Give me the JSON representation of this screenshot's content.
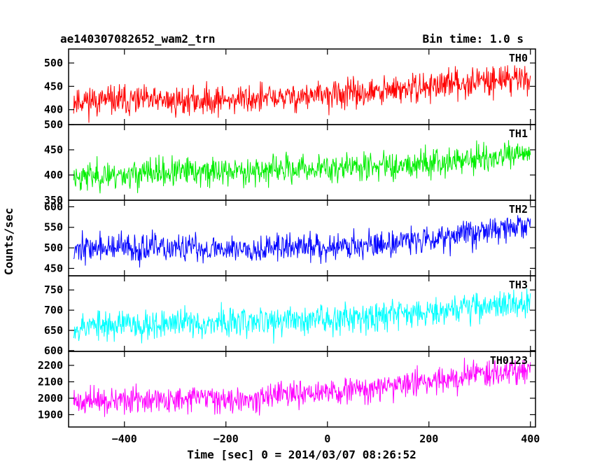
{
  "chart_data": {
    "type": "line",
    "title": "ae140307082652_wam2_trn",
    "subtitle": "Bin time: 1.0 s",
    "xlabel": "Time [sec] 0 = 2014/03/07 08:26:52",
    "ylabel": "Counts/sec",
    "xlim": [
      -510,
      410
    ],
    "x_ticks": [
      -400,
      -200,
      0,
      200,
      400
    ],
    "x_tick_labels": [
      "−400",
      "−200",
      "0",
      "200",
      "400"
    ],
    "grid": false,
    "legend": "in-panel top-right",
    "panels": [
      {
        "name": "TH0",
        "color": "#ff0000",
        "ylim": [
          368,
          530
        ],
        "y_ticks": [
          400,
          450,
          500
        ],
        "x_start": -500,
        "x_end": 400,
        "trend": [
          [
            -500,
            420
          ],
          [
            -300,
            418
          ],
          [
            -100,
            425
          ],
          [
            100,
            437
          ],
          [
            300,
            462
          ],
          [
            400,
            470
          ]
        ],
        "noise_sd": 22,
        "seed": 11
      },
      {
        "name": "TH1",
        "color": "#00ee00",
        "ylim": [
          350,
          500
        ],
        "y_ticks": [
          350,
          400,
          450,
          500
        ],
        "x_start": -500,
        "x_end": 400,
        "trend": [
          [
            -500,
            397
          ],
          [
            -300,
            405
          ],
          [
            -100,
            410
          ],
          [
            100,
            418
          ],
          [
            300,
            432
          ],
          [
            400,
            440
          ]
        ],
        "noise_sd": 20,
        "seed": 23
      },
      {
        "name": "TH2",
        "color": "#0000ff",
        "ylim": [
          432,
          616
        ],
        "y_ticks": [
          450,
          500,
          550,
          600
        ],
        "x_start": -500,
        "x_end": 400,
        "trend": [
          [
            -500,
            500
          ],
          [
            -300,
            498
          ],
          [
            -100,
            500
          ],
          [
            100,
            508
          ],
          [
            300,
            540
          ],
          [
            400,
            555
          ]
        ],
        "noise_sd": 24,
        "seed": 37
      },
      {
        "name": "TH3",
        "color": "#00ffff",
        "ylim": [
          598,
          785
        ],
        "y_ticks": [
          600,
          650,
          700,
          750
        ],
        "x_start": -500,
        "x_end": 400,
        "trend": [
          [
            -500,
            660
          ],
          [
            -300,
            668
          ],
          [
            -100,
            672
          ],
          [
            100,
            688
          ],
          [
            300,
            710
          ],
          [
            400,
            718
          ]
        ],
        "noise_sd": 26,
        "seed": 53
      },
      {
        "name": "TH0123",
        "color": "#ff00ff",
        "ylim": [
          1825,
          2285
        ],
        "y_ticks": [
          1900,
          2000,
          2100,
          2200
        ],
        "x_start": -500,
        "x_end": 400,
        "trend": [
          [
            -500,
            1980
          ],
          [
            -300,
            1990
          ],
          [
            -100,
            2010
          ],
          [
            100,
            2060
          ],
          [
            300,
            2150
          ],
          [
            400,
            2180
          ]
        ],
        "noise_sd": 55,
        "seed": 71
      }
    ]
  }
}
